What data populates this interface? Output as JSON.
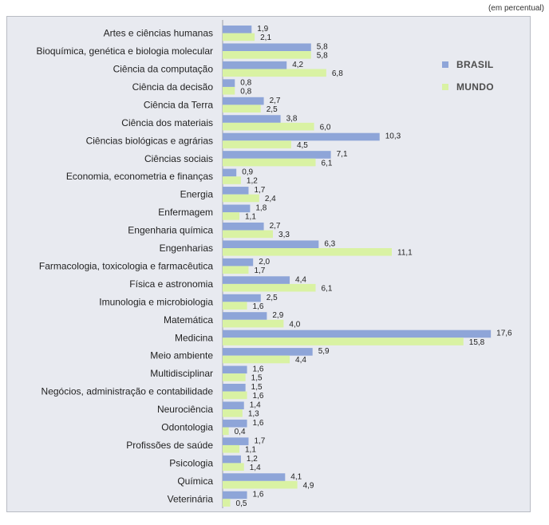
{
  "unit_label": "(em percentual)",
  "colors": {
    "brasil": "#8ea5d8",
    "mundo": "#d9f2a3",
    "background": "#e8eaf0"
  },
  "legend": {
    "brasil": "BRASIL",
    "mundo": "MUNDO"
  },
  "chart_data": {
    "type": "bar",
    "orientation": "horizontal",
    "title": "",
    "xlabel": "",
    "ylabel": "",
    "xlim": [
      0,
      18
    ],
    "grid": false,
    "legend_position": "top-right",
    "categories": [
      "Artes e ciências humanas",
      "Bioquímica, genética e biologia molecular",
      "Ciência da computação",
      "Ciência da decisão",
      "Ciência da Terra",
      "Ciência dos materiais",
      "Ciências biológicas e agrárias",
      "Ciências sociais",
      "Economia, econometria e finanças",
      "Energia",
      "Enfermagem",
      "Engenharia química",
      "Engenharias",
      "Farmacologia, toxicologia e farmacêutica",
      "Física e astronomia",
      "Imunologia e microbiologia",
      "Matemática",
      "Medicina",
      "Meio ambiente",
      "Multidisciplinar",
      "Negócios, administração e contabilidade",
      "Neurociência",
      "Odontologia",
      "Profissões de saúde",
      "Psicologia",
      "Química",
      "Veterinária"
    ],
    "series": [
      {
        "name": "BRASIL",
        "values": [
          1.9,
          5.8,
          4.2,
          0.8,
          2.7,
          3.8,
          10.3,
          7.1,
          0.9,
          1.7,
          1.8,
          2.7,
          6.3,
          2.0,
          4.4,
          2.5,
          2.9,
          17.6,
          5.9,
          1.6,
          1.5,
          1.4,
          1.6,
          1.7,
          1.2,
          4.1,
          1.6
        ],
        "labels": [
          "1,9",
          "5,8",
          "4,2",
          "0,8",
          "2,7",
          "3,8",
          "10,3",
          "7,1",
          "0,9",
          "1,7",
          "1,8",
          "2,7",
          "6,3",
          "2,0",
          "4,4",
          "2,5",
          "2,9",
          "17,6",
          "5,9",
          "1,6",
          "1,5",
          "1,4",
          "1,6",
          "1,7",
          "1,2",
          "4,1",
          "1,6"
        ]
      },
      {
        "name": "MUNDO",
        "values": [
          2.1,
          5.8,
          6.8,
          0.8,
          2.5,
          6.0,
          4.5,
          6.1,
          1.2,
          2.4,
          1.1,
          3.3,
          11.1,
          1.7,
          6.1,
          1.6,
          4.0,
          15.8,
          4.4,
          1.5,
          1.6,
          1.3,
          0.4,
          1.1,
          1.4,
          4.9,
          0.5
        ],
        "labels": [
          "2,1",
          "5,8",
          "6,8",
          "0,8",
          "2,5",
          "6,0",
          "4,5",
          "6,1",
          "1,2",
          "2,4",
          "1,1",
          "3,3",
          "11,1",
          "1,7",
          "6,1",
          "1,6",
          "4,0",
          "15,8",
          "4,4",
          "1,5",
          "1,6",
          "1,3",
          "0,4",
          "1,1",
          "1,4",
          "4,9",
          "0,5"
        ]
      }
    ]
  }
}
